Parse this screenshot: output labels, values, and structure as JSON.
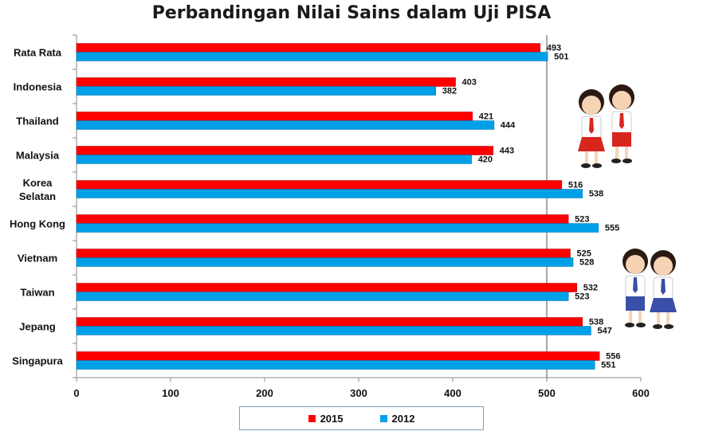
{
  "chart_data": {
    "type": "bar",
    "orientation": "horizontal",
    "title": "Perbandingan Nilai Sains dalam Uji PISA",
    "categories": [
      "Rata Rata",
      "Indonesia",
      "Thailand",
      "Malaysia",
      "Korea Selatan",
      "Hong Kong",
      "Vietnam",
      "Taiwan",
      "Jepang",
      "Singapura"
    ],
    "category_lines": [
      [
        "Rata Rata"
      ],
      [
        "Indonesia"
      ],
      [
        "Thailand"
      ],
      [
        "Malaysia"
      ],
      [
        "Korea",
        "Selatan"
      ],
      [
        "Hong Kong"
      ],
      [
        "Vietnam"
      ],
      [
        "Taiwan"
      ],
      [
        "Jepang"
      ],
      [
        "Singapura"
      ]
    ],
    "series": [
      {
        "name": "2015",
        "color": "#ff0000",
        "values": [
          493,
          403,
          421,
          443,
          516,
          523,
          525,
          532,
          538,
          556
        ]
      },
      {
        "name": "2012",
        "color": "#00a0e8",
        "values": [
          501,
          382,
          444,
          420,
          538,
          555,
          528,
          523,
          547,
          551
        ]
      }
    ],
    "xlim": [
      0,
      600
    ],
    "xticks": [
      0,
      100,
      200,
      300,
      400,
      500,
      600
    ],
    "gridlines": "vertical at 500 only",
    "legend_position": "bottom"
  }
}
